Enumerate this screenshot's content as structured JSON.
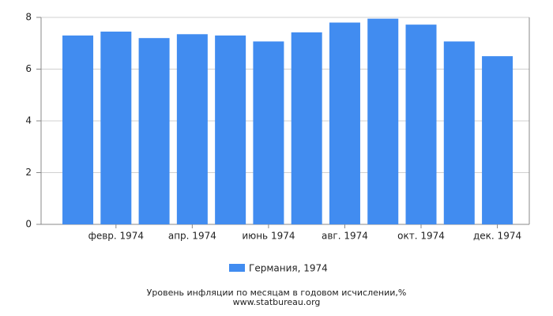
{
  "chart_data": {
    "type": "bar",
    "title": "Уровень инфляции по месяцам в годовом исчислении,%",
    "source": "www.statbureau.org",
    "categories": [
      null,
      "февр. 1974",
      null,
      "апр. 1974",
      null,
      "июнь 1974",
      null,
      "авг. 1974",
      null,
      "окт. 1974",
      null,
      "дек. 1974"
    ],
    "series": [
      {
        "name": "Германия, 1974",
        "color": "#418cf0",
        "values": [
          7.3,
          7.45,
          7.2,
          7.35,
          7.3,
          7.07,
          7.42,
          7.8,
          7.95,
          7.72,
          7.07,
          6.5
        ]
      }
    ],
    "ylim": [
      0,
      8
    ],
    "yticks": [
      0,
      2,
      4,
      6,
      8
    ],
    "grid": true
  }
}
